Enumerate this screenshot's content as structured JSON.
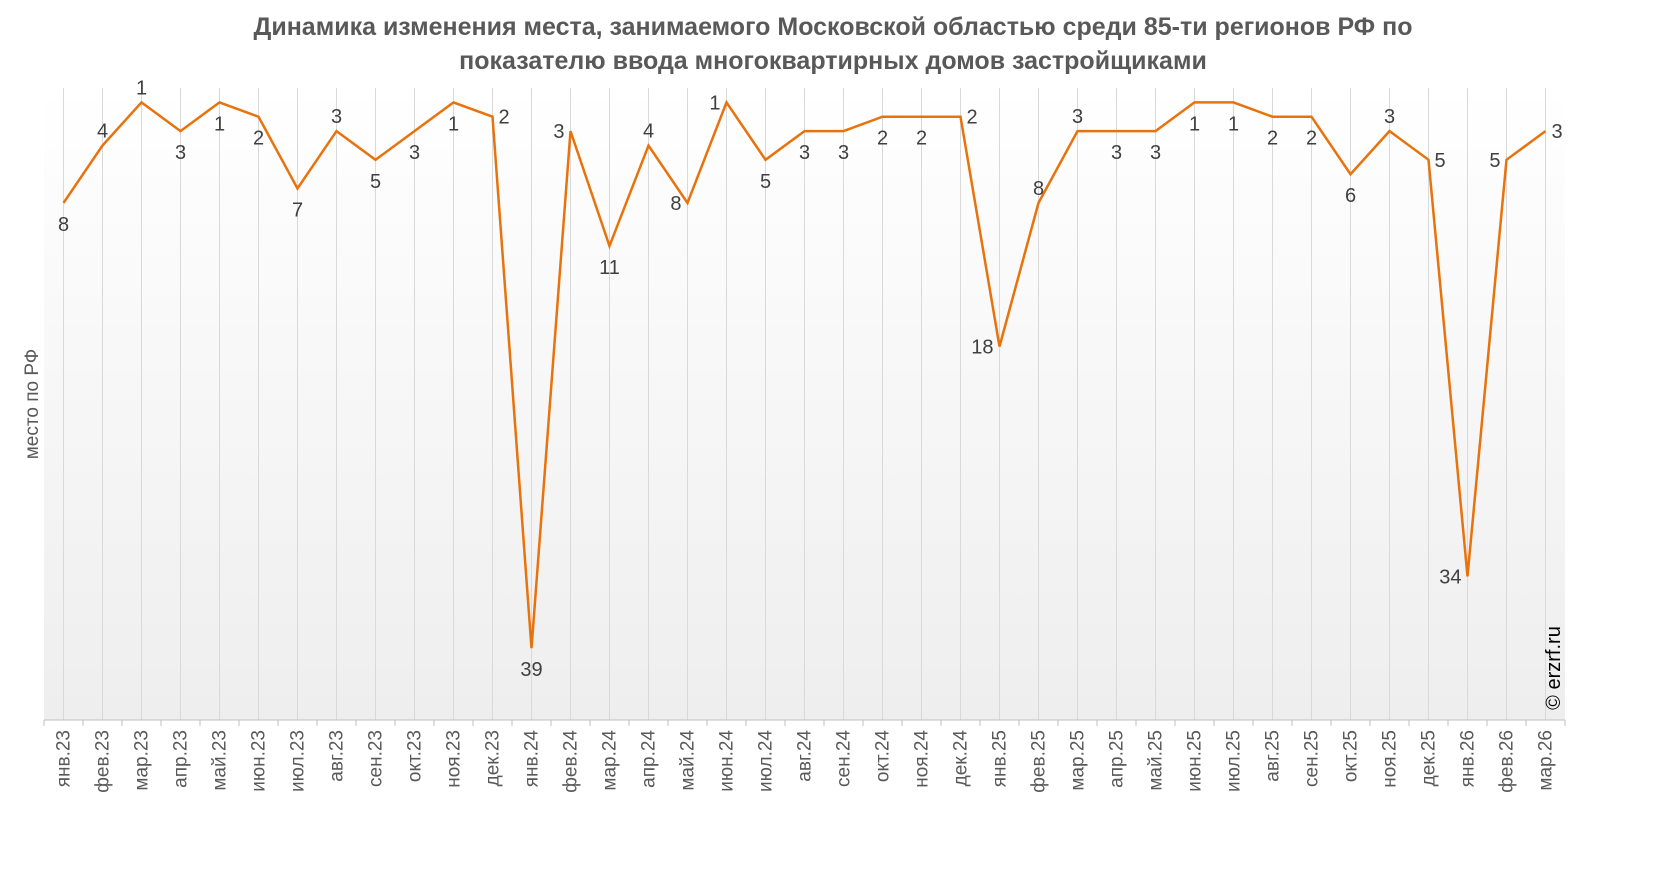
{
  "colors": {
    "line": "#E8720C",
    "grid": "#d9d9d9",
    "text": "#595959",
    "data_label": "#404040",
    "plot_bg_top": "#ffffff",
    "plot_bg_bottom": "#eeeeee"
  },
  "credit": "© erzrf.ru",
  "chart_data": {
    "type": "line",
    "title": "Динамика изменения места, занимаемого Московской областью среди 85-ти регионов РФ по показателю ввода многоквартирных домов застройщиками",
    "title_lines": [
      "Динамика изменения места, занимаемого Московской областью среди 85-ти регионов РФ по",
      "показателю ввода многоквартирных домов застройщиками"
    ],
    "xlabel": "",
    "ylabel": "место по РФ",
    "y_reversed": true,
    "ylim": [
      0,
      44
    ],
    "grid": "vertical",
    "legend": "none",
    "categories": [
      "янв.23",
      "фев.23",
      "мар.23",
      "апр.23",
      "май.23",
      "июн.23",
      "июл.23",
      "авг.23",
      "сен.23",
      "окт.23",
      "ноя.23",
      "дек.23",
      "янв.24",
      "фев.24",
      "мар.24",
      "апр.24",
      "май.24",
      "июн.24",
      "июл.24",
      "авг.24",
      "сен.24",
      "окт.24",
      "ноя.24",
      "дек.24",
      "янв.25",
      "фев.25",
      "мар.25",
      "апр.25",
      "май.25",
      "июн.25",
      "июл.25",
      "авг.25",
      "сен.25",
      "окт.25",
      "ноя.25",
      "дек.25",
      "янв.26",
      "фев.26",
      "мар.26"
    ],
    "values": [
      8,
      4,
      1,
      3,
      1,
      2,
      7,
      3,
      5,
      3,
      1,
      2,
      39,
      3,
      11,
      4,
      8,
      1,
      5,
      3,
      3,
      2,
      2,
      2,
      18,
      8,
      3,
      3,
      3,
      1,
      1,
      2,
      2,
      6,
      3,
      5,
      34,
      5,
      3
    ],
    "label_positions": [
      "below",
      "above",
      "above",
      "below",
      "below",
      "below",
      "below",
      "above",
      "below",
      "below",
      "below",
      "right",
      "below",
      "left",
      "below",
      "above",
      "left",
      "left",
      "below",
      "below",
      "below",
      "below",
      "below",
      "right",
      "left",
      "above",
      "above",
      "below",
      "below",
      "below",
      "below",
      "below",
      "below",
      "below",
      "above",
      "right",
      "left",
      "left",
      "right"
    ]
  }
}
